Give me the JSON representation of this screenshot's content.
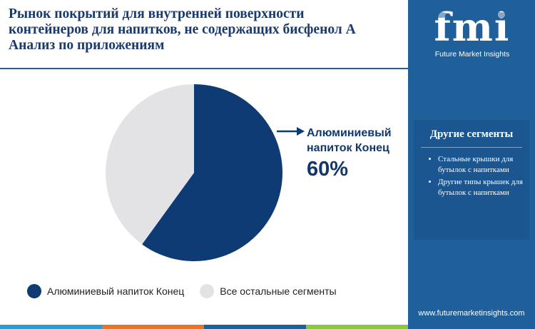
{
  "title_lines": [
    "Рынок покрытий для внутренней поверхности",
    "контейнеров для напитков, не содержащих бисфенол А",
    "Анализ по приложениям"
  ],
  "chart_data": {
    "type": "pie",
    "slices": [
      {
        "label": "Алюминиевый напиток Конец",
        "value": 60,
        "color": "#0e3b74"
      },
      {
        "label": "Все остальные сегменты",
        "value": 40,
        "color": "#e3e3e5"
      }
    ],
    "start_angle_deg": 0,
    "direction": "clockwise"
  },
  "callout": {
    "line1": "Алюминиевый",
    "line2": "напиток Конец",
    "value": "60%"
  },
  "legend": [
    {
      "label": "Алюминиевый напиток Конец",
      "color": "#0e3b74"
    },
    {
      "label": "Все остальные сегменты",
      "color": "#e3e3e5"
    }
  ],
  "brand": {
    "letters": "fmi",
    "name": "Future Market Insights",
    "website": "www.futuremarketinsights.com"
  },
  "segments_panel": {
    "title": "Другие сегменты",
    "items": [
      "Стальные крышки для бутылок с напитками",
      "Другие типы крышек для бутылок с напитками"
    ]
  },
  "colors": {
    "title": "#1b3a6b",
    "sidebar": "#1f5f9a",
    "accent_strip": [
      "#2e9ad4",
      "#e8742b",
      "#1f5f9a",
      "#8dc63f"
    ]
  }
}
